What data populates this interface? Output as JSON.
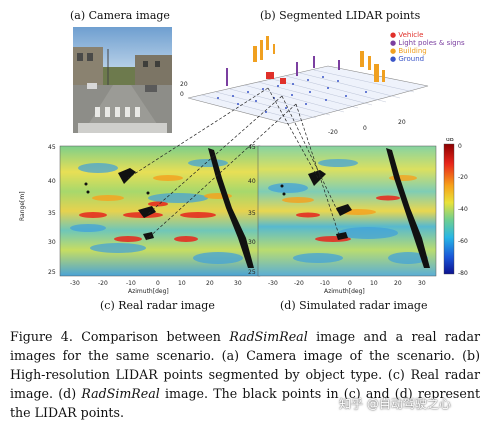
{
  "figure": {
    "subcaptions": {
      "a": "(a) Camera image",
      "b": "(b) Segmented LIDAR points",
      "c": "(c) Real radar image",
      "d": "(d) Simulated radar image"
    },
    "legend": [
      {
        "label": "Vehicle",
        "color": "#e0302a"
      },
      {
        "label": "Light poles & signs",
        "color": "#7b3fa0"
      },
      {
        "label": "Building",
        "color": "#f0a020"
      },
      {
        "label": "Ground",
        "color": "#3a55c8"
      }
    ],
    "radar_left": {
      "ylabel": "Range[m]",
      "xlabel": "Azimuth[deg]",
      "yticks": [
        "45",
        "40",
        "35",
        "30",
        "25"
      ],
      "xticks": [
        "-30",
        "-20",
        "-10",
        "0",
        "10",
        "20",
        "30"
      ]
    },
    "radar_right": {
      "xlabel": "Azimuth[deg]",
      "yticks": [
        "45",
        "40",
        "35",
        "30",
        "25"
      ],
      "xticks": [
        "-30",
        "-20",
        "-10",
        "0",
        "10",
        "20",
        "30"
      ]
    },
    "colorbar": {
      "unit": "dB",
      "ticks": [
        "0",
        "-20",
        "-40",
        "-60",
        "-80"
      ]
    }
  },
  "caption": {
    "p1": "Figure 4. Comparison between ",
    "i1": "RadSimReal",
    "p2": " image and a real radar images for the same scenario. (a) Camera image of the scenario. (b) High-resolution LIDAR points segmented by object type. (c) Real radar image. (d) ",
    "i2": "RadSimReal",
    "p3": " image. The black points in (c) and (d) represent the LIDAR points."
  },
  "watermark": "知乎 @自动驾驶之心"
}
